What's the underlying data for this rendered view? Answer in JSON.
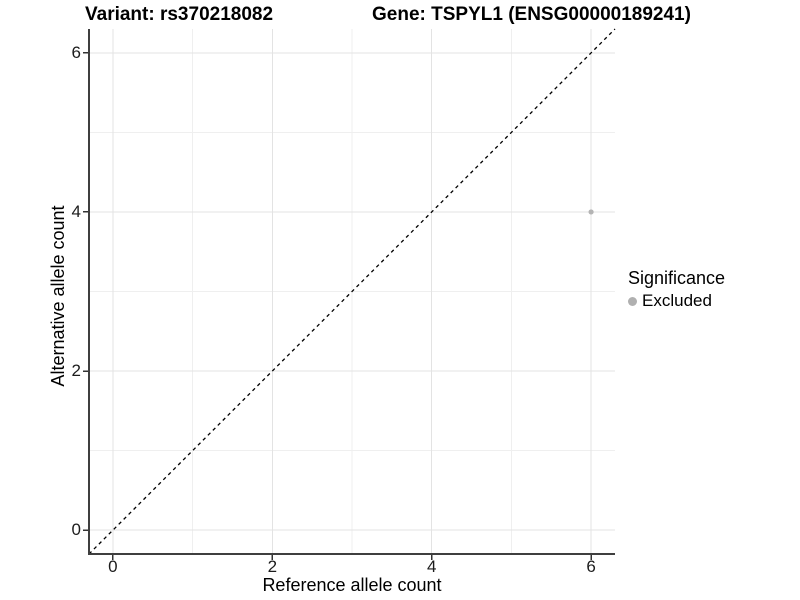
{
  "chart_data": {
    "type": "scatter",
    "title_left": "Variant: rs370218082",
    "title_right": "Gene: TSPYL1 (ENSG00000189241)",
    "xlabel": "Reference allele count",
    "ylabel": "Alternative allele count",
    "xlim": [
      -0.3,
      6.3
    ],
    "ylim": [
      -0.3,
      6.3
    ],
    "x_major_ticks": [
      0,
      2,
      4,
      6
    ],
    "y_major_ticks": [
      0,
      2,
      4,
      6
    ],
    "x_minor_ticks": [
      1,
      3,
      5
    ],
    "y_minor_ticks": [
      1,
      3,
      5
    ],
    "grid": true,
    "points": [
      {
        "x": 6,
        "y": 4,
        "series": "Excluded"
      }
    ],
    "reference_line": {
      "type": "identity y=x",
      "from": [
        -0.3,
        -0.3
      ],
      "to": [
        6.3,
        6.3
      ],
      "style": "dashed"
    },
    "legend": {
      "title": "Significance",
      "position": "right",
      "entries": [
        {
          "label": "Excluded",
          "color": "#b0b0b0"
        }
      ]
    },
    "colors": {
      "point": "#b4b4b4",
      "grid_major": "#e3e3e3",
      "grid_minor": "#efefef",
      "axis_line": "#3f3f3f",
      "tick_mark": "#333333",
      "dashed_line": "#000000",
      "background": "#ffffff"
    }
  }
}
